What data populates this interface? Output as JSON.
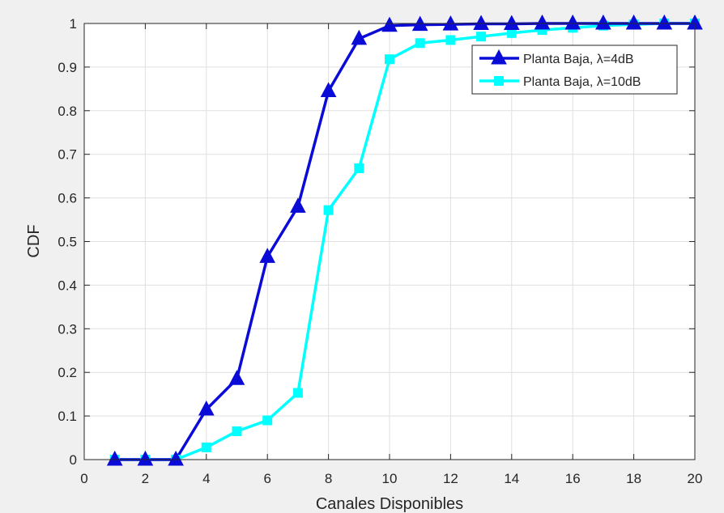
{
  "chart_data": {
    "type": "line",
    "xlabel": "Canales Disponibles",
    "ylabel": "CDF",
    "xlim": [
      0,
      20
    ],
    "ylim": [
      0,
      1
    ],
    "xticks": [
      0,
      2,
      4,
      6,
      8,
      10,
      12,
      14,
      16,
      18,
      20
    ],
    "yticks": [
      0,
      0.1,
      0.2,
      0.3,
      0.4,
      0.5,
      0.6,
      0.7,
      0.8,
      0.9,
      1
    ],
    "xtick_labels": [
      "0",
      "2",
      "4",
      "6",
      "8",
      "10",
      "12",
      "14",
      "16",
      "18",
      "20"
    ],
    "ytick_labels": [
      "0",
      "0.1",
      "0.2",
      "0.3",
      "0.4",
      "0.5",
      "0.6",
      "0.7",
      "0.8",
      "0.9",
      "1"
    ],
    "grid": true,
    "legend_position": "top-right",
    "series": [
      {
        "name": "Planta Baja, λ=4dB",
        "color": "#0b0bd8",
        "marker": "triangle",
        "x": [
          1,
          2,
          3,
          4,
          5,
          6,
          7,
          8,
          9,
          10,
          11,
          12,
          13,
          14,
          15,
          16,
          17,
          18,
          19,
          20
        ],
        "y": [
          0,
          0,
          0,
          0.115,
          0.185,
          0.465,
          0.58,
          0.845,
          0.965,
          0.995,
          0.997,
          0.998,
          0.999,
          0.999,
          1,
          1,
          1,
          1,
          1,
          1
        ]
      },
      {
        "name": "Planta Baja, λ=10dB",
        "color": "#00ffff",
        "marker": "square",
        "x": [
          1,
          2,
          3,
          4,
          5,
          6,
          7,
          8,
          9,
          10,
          11,
          12,
          13,
          14,
          15,
          16,
          17,
          18,
          19,
          20
        ],
        "y": [
          0,
          0,
          0,
          0.028,
          0.065,
          0.09,
          0.153,
          0.572,
          0.668,
          0.918,
          0.955,
          0.962,
          0.97,
          0.978,
          0.985,
          0.99,
          0.995,
          0.998,
          1,
          1
        ]
      }
    ]
  }
}
